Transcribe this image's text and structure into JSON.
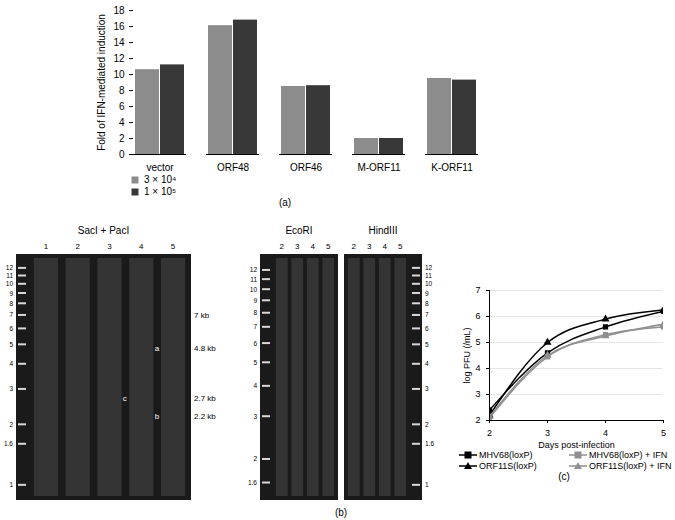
{
  "chart_data": [
    {
      "type": "bar",
      "caption": "(a)",
      "ylabel": "Fold of IFN-mediated induction",
      "categories": [
        "vector",
        "ORF48",
        "ORF46",
        "M-ORF11",
        "K-ORF11"
      ],
      "series": [
        {
          "name": "3 × 10⁴",
          "color": "#8c8c8c",
          "values": [
            10.6,
            16.1,
            8.5,
            2.0,
            9.5
          ]
        },
        {
          "name": "1 × 10⁵",
          "color": "#383838",
          "values": [
            11.2,
            16.8,
            8.6,
            2.0,
            9.3
          ]
        }
      ],
      "ylim": [
        0,
        18
      ],
      "yticks": [
        0,
        2,
        4,
        6,
        8,
        10,
        12,
        14,
        16,
        18
      ],
      "grid": false,
      "legend": "bottom"
    },
    {
      "type": "line",
      "caption": "(c)",
      "xlabel": "Days post-infection",
      "ylabel": "log PFU (/mL)",
      "x": [
        2,
        3,
        4,
        5
      ],
      "series": [
        {
          "name": "MHV68(loxP)",
          "color": "#000000",
          "marker": "square",
          "line_style": "solid",
          "values": [
            2.4,
            4.6,
            5.6,
            6.2
          ]
        },
        {
          "name": "MHV68(loxP) + IFN",
          "color": "#909090",
          "marker": "square",
          "line_style": "solid",
          "values": [
            2.1,
            4.45,
            5.3,
            5.6
          ]
        },
        {
          "name": "ORF11S(loxP)",
          "color": "#000000",
          "marker": "triangle",
          "line_style": "solid",
          "values": [
            2.2,
            5.0,
            5.9,
            6.25
          ]
        },
        {
          "name": "ORF11S(loxP) + IFN",
          "color": "#909090",
          "marker": "triangle",
          "line_style": "solid",
          "values": [
            2.15,
            4.5,
            5.25,
            5.7
          ]
        }
      ],
      "xlim": [
        2,
        5
      ],
      "xticks": [
        2,
        3,
        4,
        5
      ],
      "ylim": [
        2,
        7
      ],
      "yticks": [
        2,
        3,
        4,
        5,
        6,
        7
      ],
      "grid": true,
      "legend": "bottom"
    }
  ],
  "gels": {
    "caption": "(b)",
    "panels": [
      {
        "title": "SacI + PacI",
        "lanes": [
          "1",
          "2",
          "3",
          "4",
          "5"
        ],
        "ladder": [
          12,
          11,
          10,
          9,
          8,
          7,
          6,
          5,
          4,
          3,
          2,
          1.6,
          1
        ],
        "annotations": [
          {
            "label": "7 kb",
            "size": 7
          },
          {
            "label": "4.8 kb",
            "size": 4.8,
            "letter": "a",
            "lane": "4"
          },
          {
            "label": "2.7 kb",
            "size": 2.7,
            "letter": "c",
            "lane": "3"
          },
          {
            "label": "2.2 kb",
            "size": 2.2,
            "letter": "b",
            "lane": "4"
          }
        ]
      },
      {
        "title": "EcoRI",
        "lanes": [
          "2",
          "3",
          "4",
          "5"
        ],
        "ladder": [
          12,
          11,
          10,
          9,
          8,
          7,
          6,
          5,
          4,
          3,
          2,
          1.6
        ],
        "annotations": []
      },
      {
        "title": "HindIII",
        "lanes": [
          "2",
          "3",
          "4",
          "5"
        ],
        "ladder": [
          12,
          11,
          10,
          9,
          8,
          7,
          6,
          5,
          4,
          3,
          2,
          1.6,
          1
        ],
        "annotations": []
      }
    ]
  }
}
